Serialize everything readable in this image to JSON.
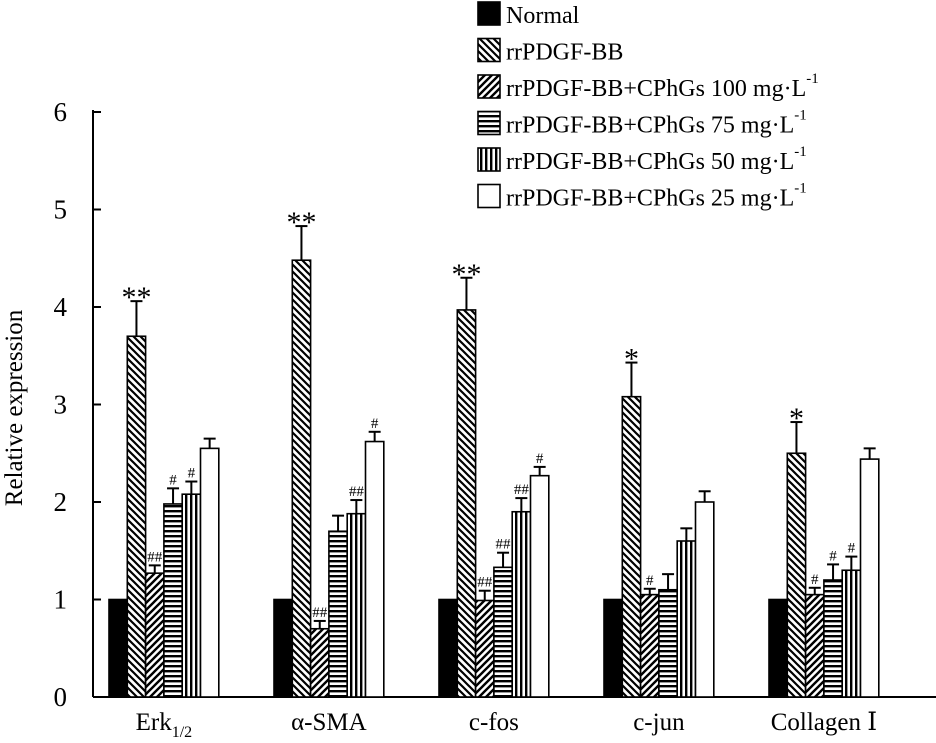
{
  "chart_data": {
    "type": "bar",
    "title": "",
    "xlabel": "",
    "ylabel": "Relative expression",
    "ylim": [
      0,
      6
    ],
    "yticks": [
      0,
      1,
      2,
      3,
      4,
      5,
      6
    ],
    "categories": [
      {
        "main": "Erk",
        "sub": "1/2"
      },
      {
        "main": "α-SMA",
        "sub": ""
      },
      {
        "main": "c-fos",
        "sub": ""
      },
      {
        "main": "c-jun",
        "sub": ""
      },
      {
        "main": "Collagen Ⅰ",
        "sub": ""
      }
    ],
    "series": [
      {
        "name": "Normal",
        "legend_label": "Normal",
        "legend_sup": "",
        "pattern": "solid",
        "values": [
          1.0,
          1.0,
          1.0,
          1.0,
          1.0
        ],
        "errors": [
          0,
          0,
          0,
          0,
          0
        ],
        "annotations": [
          "",
          "",
          "",
          "",
          ""
        ]
      },
      {
        "name": "rrPDGF-BB",
        "legend_label": "rrPDGF-BB",
        "legend_sup": "",
        "pattern": "diag-back",
        "values": [
          3.7,
          4.48,
          3.97,
          3.08,
          2.5
        ],
        "errors": [
          0.36,
          0.35,
          0.33,
          0.35,
          0.32
        ],
        "annotations": [
          "**",
          "**",
          "**",
          "*",
          "*"
        ]
      },
      {
        "name": "rrPDGF-BB+CPhGs 100 mg·L-1",
        "legend_label": "rrPDGF-BB+CPhGs 100 mg·L",
        "legend_sup": "-1",
        "pattern": "diag-fwd",
        "values": [
          1.27,
          0.7,
          0.99,
          1.05,
          1.05
        ],
        "errors": [
          0.08,
          0.08,
          0.1,
          0.06,
          0.07
        ],
        "annotations": [
          "##",
          "##",
          "##",
          "#",
          "#"
        ]
      },
      {
        "name": "rrPDGF-BB+CPhGs 75 mg·L-1",
        "legend_label": "rrPDGF-BB+CPhGs 75 mg·L",
        "legend_sup": "-1",
        "pattern": "horizontal",
        "values": [
          1.98,
          1.7,
          1.33,
          1.1,
          1.2
        ],
        "errors": [
          0.16,
          0.16,
          0.15,
          0.16,
          0.16
        ],
        "annotations": [
          "#",
          "",
          "##",
          "",
          "#"
        ]
      },
      {
        "name": "rrPDGF-BB+CPhGs 50 mg·L-1",
        "legend_label": "rrPDGF-BB+CPhGs 50 mg·L",
        "legend_sup": "-1",
        "pattern": "vertical",
        "values": [
          2.08,
          1.88,
          1.9,
          1.6,
          1.3
        ],
        "errors": [
          0.13,
          0.14,
          0.14,
          0.13,
          0.14
        ],
        "annotations": [
          "#",
          "##",
          "##",
          "",
          "#"
        ]
      },
      {
        "name": "rrPDGF-BB+CPhGs 25 mg·L-1",
        "legend_label": "rrPDGF-BB+CPhGs 25 mg·L",
        "legend_sup": "-1",
        "pattern": "white",
        "values": [
          2.55,
          2.62,
          2.27,
          2.0,
          2.44
        ],
        "errors": [
          0.1,
          0.1,
          0.09,
          0.11,
          0.11
        ],
        "annotations": [
          "",
          "#",
          "#",
          "",
          ""
        ]
      }
    ]
  }
}
